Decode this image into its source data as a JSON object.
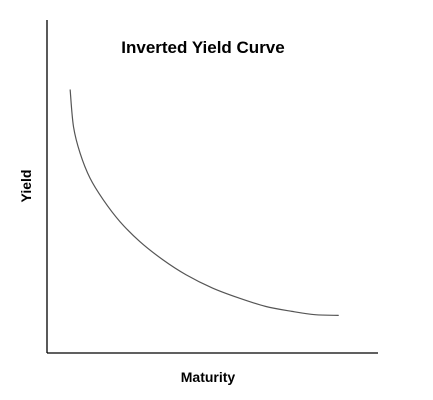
{
  "chart_data": {
    "type": "line",
    "title": "Inverted Yield Curve",
    "xlabel": "Maturity",
    "ylabel": "Yield",
    "x_ticks": "none",
    "y_ticks": "none",
    "grid": false,
    "legend": "none",
    "xlim": [
      0,
      100
    ],
    "ylim": [
      0,
      100
    ],
    "series": [
      {
        "color": "#555555",
        "x": [
          7,
          8,
          10,
          13,
          17,
          22,
          28,
          35,
          42,
          50,
          58,
          66,
          74,
          81,
          88
        ],
        "y": [
          79,
          68,
          60,
          52.5,
          46,
          39.5,
          33.5,
          28,
          23.5,
          19.5,
          16.5,
          14,
          12.5,
          11.5,
          11.3
        ]
      }
    ]
  }
}
